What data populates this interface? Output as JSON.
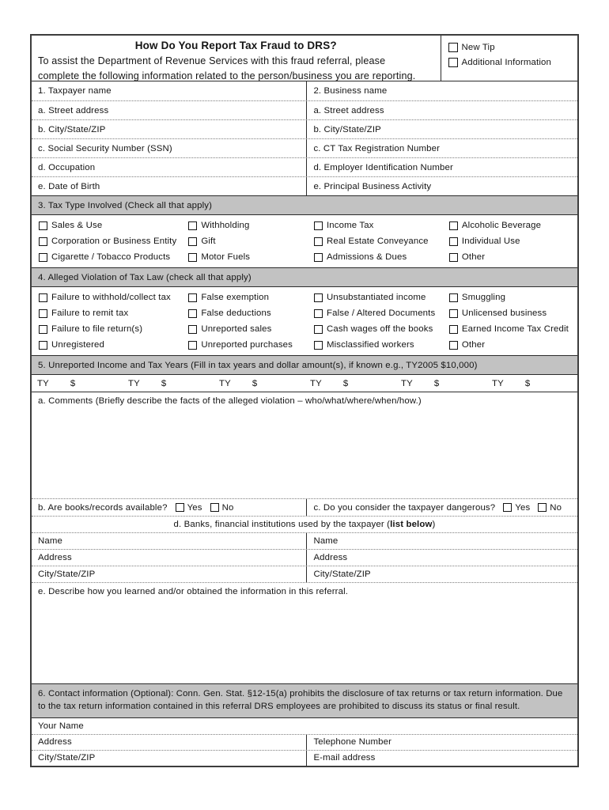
{
  "colors": {
    "section_bar": "#c2c2c2"
  },
  "header": {
    "title": "How Do You Report Tax Fraud to DRS?",
    "line1": "To assist the Department of Revenue Services with this fraud referral, please",
    "line2": "complete the following information related to the person/business you are reporting.",
    "new_tip": "New Tip",
    "additional_info": "Additional Information"
  },
  "party_rows": [
    {
      "left": "1. Taxpayer name",
      "right": "2. Business name"
    },
    {
      "left": "a. Street address",
      "right": "a. Street address"
    },
    {
      "left": "b. City/State/ZIP",
      "right": "b. City/State/ZIP"
    },
    {
      "left": "c. Social Security Number (SSN)",
      "right": "c. CT Tax Registration Number"
    },
    {
      "left": "d. Occupation",
      "right": "d. Employer Identification Number"
    },
    {
      "left": "e. Date of Birth",
      "right": "e. Principal Business Activity"
    }
  ],
  "section3": {
    "title": "3. Tax Type Involved (Check all that apply)",
    "rows": [
      [
        "Sales & Use",
        "Withholding",
        "Income Tax",
        "Alcoholic Beverage"
      ],
      [
        "Corporation or Business Entity",
        "Gift",
        "Real Estate Conveyance",
        "Individual Use"
      ],
      [
        "Cigarette / Tobacco Products",
        "Motor Fuels",
        "Admissions & Dues",
        "Other"
      ]
    ]
  },
  "section4": {
    "title": "4. Alleged Violation of Tax Law (check all that apply)",
    "rows": [
      [
        "Failure to withhold/collect tax",
        "False exemption",
        "Unsubstantiated income",
        "Smuggling"
      ],
      [
        "Failure to remit tax",
        "False deductions",
        "False / Altered Documents",
        "Unlicensed business"
      ],
      [
        "Failure to file return(s)",
        "Unreported sales",
        "Cash wages off the books",
        "Earned Income Tax Credit"
      ],
      [
        "Unregistered",
        "Unreported purchases",
        "Misclassified workers",
        "Other"
      ]
    ]
  },
  "section5": {
    "title": "5. Unreported Income and Tax Years (Fill in tax years and dollar amount(s), if known e.g., TY2005 $10,000)",
    "ty_label": "TY",
    "dollar_label": "$",
    "comments_label": "a. Comments (Briefly describe the facts of the alleged violation – who/what/where/when/how.)"
  },
  "bc_row": {
    "books_label": "b. Are books/records available?",
    "dangerous_label": "c. Do you consider the taxpayer dangerous?",
    "yes": "Yes",
    "no": "No"
  },
  "banks": {
    "header_prefix": "d. Banks, financial institutions used by the taxpayer (",
    "header_bold": "list below",
    "header_suffix": ")",
    "rows": [
      {
        "left": "Name",
        "right": "Name"
      },
      {
        "left": "Address",
        "right": "Address"
      },
      {
        "left": "City/State/ZIP",
        "right": "City/State/ZIP"
      }
    ]
  },
  "describe_label": "e. Describe how you learned and/or obtained the information in this referral.",
  "section6": {
    "text": "6. Contact information (Optional): Conn. Gen. Stat. §12-15(a) prohibits the disclosure of tax returns or tax return information.  Due to the tax return information contained in this referral DRS employees are prohibited to discuss its status or final result."
  },
  "contact_rows": {
    "your_name": "Your Name",
    "address": "Address",
    "telephone": "Telephone Number",
    "city_state_zip": "City/State/ZIP",
    "email": "E-mail address"
  }
}
